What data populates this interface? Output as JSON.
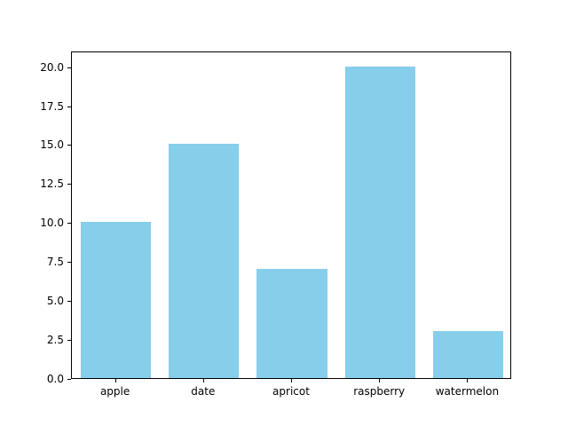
{
  "chart_data": {
    "type": "bar",
    "categories": [
      "apple",
      "date",
      "apricot",
      "raspberry",
      "watermelon"
    ],
    "values": [
      10,
      15,
      7,
      20,
      3
    ],
    "title": "",
    "xlabel": "",
    "ylabel": "",
    "ylim": [
      0,
      21
    ],
    "yticks": [
      0.0,
      2.5,
      5.0,
      7.5,
      10.0,
      12.5,
      15.0,
      17.5,
      20.0
    ],
    "ytick_format_decimals": 1,
    "bar_color": "#87CEEB",
    "bar_relative_width": 0.8,
    "background": "#FFFFFF",
    "grid": false,
    "legend": null
  }
}
